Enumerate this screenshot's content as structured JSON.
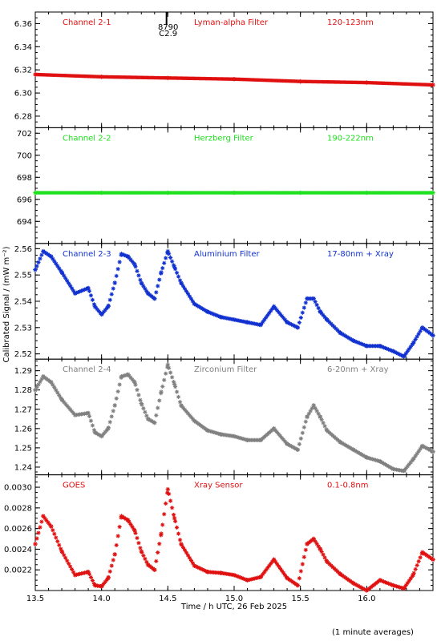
{
  "chart_data": {
    "type": "scatter",
    "xlabel": "Time / h UTC, 26 Feb 2025",
    "ylabel": "Calibrated Signal / (mW m⁻²)",
    "footnote": "(1 minute averages)",
    "xlim": [
      13.5,
      16.5
    ],
    "xticks": [
      "13.5",
      "14.0",
      "14.5",
      "15.0",
      "15.5",
      "16.0"
    ],
    "xtick_values": [
      13.5,
      14.0,
      14.5,
      15.0,
      15.5,
      16.0
    ],
    "marker": "asterisk",
    "grid": false,
    "event_marker": {
      "x": 14.49,
      "label_top": "8790",
      "label_bottom": "C2.9"
    },
    "panels": [
      {
        "name": "Channel 2-1",
        "filter": "Lyman-alpha Filter",
        "band": "120-123nm",
        "color": "#e01010",
        "ylim": [
          6.27,
          6.37
        ],
        "yticks": [
          "6.28",
          "6.30",
          "6.32",
          "6.34",
          "6.36"
        ],
        "ytick_values": [
          6.28,
          6.3,
          6.32,
          6.34,
          6.36
        ],
        "x": [
          13.5,
          14.0,
          14.5,
          15.0,
          15.5,
          16.0,
          16.5
        ],
        "y": [
          6.316,
          6.314,
          6.313,
          6.312,
          6.31,
          6.309,
          6.307
        ]
      },
      {
        "name": "Channel 2-2",
        "filter": "Herzberg Filter",
        "band": "190-222nm",
        "color": "#20e020",
        "ylim": [
          692,
          702.5
        ],
        "yticks": [
          "694",
          "696",
          "698",
          "700",
          "702"
        ],
        "ytick_values": [
          694,
          696,
          698,
          700,
          702
        ],
        "x": [
          13.5,
          14.0,
          14.5,
          15.0,
          15.5,
          16.0,
          16.5
        ],
        "y": [
          696.6,
          696.6,
          696.6,
          696.6,
          696.6,
          696.6,
          696.6
        ]
      },
      {
        "name": "Channel 2-3",
        "filter": "Aluminium Filter",
        "band": "17-80nm + Xray",
        "color": "#1030d0",
        "ylim": [
          2.518,
          2.562
        ],
        "yticks": [
          "2.52",
          "2.53",
          "2.54",
          "2.55",
          "2.56"
        ],
        "ytick_values": [
          2.52,
          2.53,
          2.54,
          2.55,
          2.56
        ],
        "x": [
          13.5,
          13.56,
          13.62,
          13.7,
          13.8,
          13.9,
          13.95,
          14.0,
          14.05,
          14.1,
          14.15,
          14.2,
          14.25,
          14.3,
          14.35,
          14.4,
          14.45,
          14.5,
          14.55,
          14.6,
          14.7,
          14.8,
          14.9,
          15.0,
          15.1,
          15.2,
          15.3,
          15.4,
          15.48,
          15.55,
          15.6,
          15.65,
          15.7,
          15.8,
          15.9,
          16.0,
          16.1,
          16.2,
          16.28,
          16.35,
          16.42,
          16.5
        ],
        "y": [
          2.552,
          2.559,
          2.557,
          2.551,
          2.543,
          2.545,
          2.538,
          2.535,
          2.538,
          2.547,
          2.558,
          2.557,
          2.554,
          2.547,
          2.543,
          2.541,
          2.551,
          2.559,
          2.553,
          2.547,
          2.539,
          2.536,
          2.534,
          2.533,
          2.532,
          2.531,
          2.538,
          2.532,
          2.53,
          2.541,
          2.541,
          2.536,
          2.533,
          2.528,
          2.525,
          2.523,
          2.523,
          2.521,
          2.519,
          2.524,
          2.53,
          2.527
        ]
      },
      {
        "name": "Channel 2-4",
        "filter": "Zirconium Filter",
        "band": "6-20nm + Xray",
        "color": "#808080",
        "ylim": [
          1.236,
          1.296
        ],
        "yticks": [
          "1.24",
          "1.25",
          "1.26",
          "1.27",
          "1.28",
          "1.29"
        ],
        "ytick_values": [
          1.24,
          1.25,
          1.26,
          1.27,
          1.28,
          1.29
        ],
        "x": [
          13.5,
          13.56,
          13.62,
          13.7,
          13.8,
          13.9,
          13.95,
          14.0,
          14.05,
          14.1,
          14.15,
          14.2,
          14.25,
          14.3,
          14.35,
          14.4,
          14.45,
          14.5,
          14.55,
          14.6,
          14.7,
          14.8,
          14.9,
          15.0,
          15.1,
          15.2,
          15.3,
          15.4,
          15.48,
          15.55,
          15.6,
          15.65,
          15.7,
          15.8,
          15.9,
          16.0,
          16.1,
          16.2,
          16.28,
          16.35,
          16.42,
          16.5
        ],
        "y": [
          1.28,
          1.287,
          1.284,
          1.275,
          1.267,
          1.268,
          1.258,
          1.256,
          1.26,
          1.272,
          1.287,
          1.288,
          1.284,
          1.273,
          1.265,
          1.263,
          1.279,
          1.293,
          1.283,
          1.272,
          1.264,
          1.259,
          1.257,
          1.256,
          1.254,
          1.254,
          1.26,
          1.252,
          1.249,
          1.266,
          1.272,
          1.266,
          1.259,
          1.253,
          1.249,
          1.245,
          1.243,
          1.239,
          1.238,
          1.244,
          1.251,
          1.248
        ]
      },
      {
        "name": "GOES",
        "filter": "Xray Sensor",
        "band": "0.1-0.8nm",
        "color": "#e01010",
        "ylim": [
          0.002,
          0.00312
        ],
        "yticks": [
          "0.0022",
          "0.0024",
          "0.0026",
          "0.0028",
          "0.0030"
        ],
        "ytick_values": [
          0.0022,
          0.0024,
          0.0026,
          0.0028,
          0.003
        ],
        "x": [
          13.5,
          13.56,
          13.62,
          13.7,
          13.8,
          13.9,
          13.95,
          14.0,
          14.05,
          14.1,
          14.15,
          14.2,
          14.25,
          14.3,
          14.35,
          14.4,
          14.45,
          14.5,
          14.55,
          14.6,
          14.7,
          14.8,
          14.9,
          15.0,
          15.1,
          15.2,
          15.3,
          15.4,
          15.48,
          15.55,
          15.6,
          15.65,
          15.7,
          15.8,
          15.9,
          16.0,
          16.1,
          16.2,
          16.28,
          16.35,
          16.42,
          16.5
        ],
        "y": [
          0.00245,
          0.00272,
          0.00262,
          0.00238,
          0.00215,
          0.00218,
          0.00205,
          0.00204,
          0.00212,
          0.00235,
          0.00272,
          0.00268,
          0.00258,
          0.00238,
          0.00225,
          0.0022,
          0.00255,
          0.00298,
          0.0027,
          0.00245,
          0.00224,
          0.00218,
          0.00217,
          0.00215,
          0.0021,
          0.00213,
          0.0023,
          0.00212,
          0.00205,
          0.00245,
          0.0025,
          0.0024,
          0.00228,
          0.00216,
          0.00207,
          0.002,
          0.0021,
          0.00205,
          0.00202,
          0.00215,
          0.00237,
          0.0023
        ]
      }
    ]
  }
}
